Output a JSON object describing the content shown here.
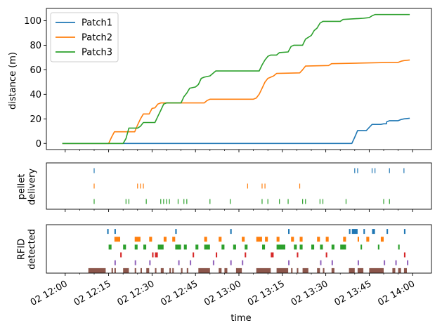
{
  "chart_data": [
    {
      "type": "line",
      "id": "distance",
      "xlabel": "",
      "ylabel": "distance (m)",
      "xlim": [
        "12:00",
        "14:00"
      ],
      "ylim": [
        -5,
        110
      ],
      "yticks": [
        0,
        20,
        40,
        60,
        80,
        100
      ],
      "legend": {
        "placement": "top-left",
        "entries": [
          "Patch1",
          "Patch2",
          "Patch3"
        ]
      },
      "series": [
        {
          "name": "Patch1",
          "color": "#1f77b4",
          "points": [
            [
              "11:59",
              0
            ],
            [
              "13:39",
              0
            ],
            [
              "13:40",
              5
            ],
            [
              "13:41",
              10.5
            ],
            [
              "13:44",
              10.5
            ],
            [
              "13:45",
              13
            ],
            [
              "13:46",
              15.5
            ],
            [
              "13:49",
              15.5
            ],
            [
              "13:50",
              16
            ],
            [
              "13:51",
              16
            ],
            [
              "13:51",
              17.5
            ],
            [
              "13:52",
              18.5
            ],
            [
              "13:55",
              18.5
            ],
            [
              "13:56",
              19.5
            ],
            [
              "13:57",
              20
            ],
            [
              "13:59",
              20.5
            ]
          ]
        },
        {
          "name": "Patch2",
          "color": "#ff7f0e",
          "points": [
            [
              "11:59",
              0
            ],
            [
              "12:15",
              0
            ],
            [
              "12:16",
              5
            ],
            [
              "12:17",
              9.5
            ],
            [
              "12:24",
              9.5
            ],
            [
              "12:25",
              15
            ],
            [
              "12:26",
              20
            ],
            [
              "12:27",
              24
            ],
            [
              "12:29",
              24
            ],
            [
              "12:30",
              28.5
            ],
            [
              "12:31",
              29
            ],
            [
              "12:32",
              32
            ],
            [
              "12:33",
              33
            ],
            [
              "12:48",
              33
            ],
            [
              "12:49",
              35
            ],
            [
              "12:50",
              36
            ],
            [
              "13:05",
              36
            ],
            [
              "13:06",
              37
            ],
            [
              "13:07",
              40
            ],
            [
              "13:08",
              45
            ],
            [
              "13:09",
              50
            ],
            [
              "13:10",
              53
            ],
            [
              "13:12",
              55
            ],
            [
              "13:13",
              57
            ],
            [
              "13:21",
              57.5
            ],
            [
              "13:22",
              60
            ],
            [
              "13:23",
              63
            ],
            [
              "13:31",
              63.5
            ],
            [
              "13:32",
              65
            ],
            [
              "13:42",
              65.5
            ],
            [
              "13:52",
              66
            ],
            [
              "13:55",
              66
            ],
            [
              "13:56",
              67
            ],
            [
              "13:57",
              67.5
            ],
            [
              "13:59",
              68
            ]
          ]
        },
        {
          "name": "Patch3",
          "color": "#2ca02c",
          "points": [
            [
              "11:59",
              0
            ],
            [
              "12:20",
              0
            ],
            [
              "12:21",
              4
            ],
            [
              "12:22",
              12.5
            ],
            [
              "12:25",
              12.5
            ],
            [
              "12:26",
              14
            ],
            [
              "12:27",
              17
            ],
            [
              "12:31",
              17
            ],
            [
              "12:32",
              22
            ],
            [
              "12:33",
              27
            ],
            [
              "12:34",
              32
            ],
            [
              "12:35",
              33
            ],
            [
              "12:40",
              33
            ],
            [
              "12:41",
              38
            ],
            [
              "12:42",
              41
            ],
            [
              "12:43",
              45
            ],
            [
              "12:45",
              46
            ],
            [
              "12:46",
              48
            ],
            [
              "12:47",
              53
            ],
            [
              "12:48",
              54
            ],
            [
              "12:50",
              55
            ],
            [
              "12:51",
              57
            ],
            [
              "12:52",
              59
            ],
            [
              "13:07",
              59
            ],
            [
              "13:08",
              64
            ],
            [
              "13:09",
              68
            ],
            [
              "13:10",
              71
            ],
            [
              "13:11",
              72
            ],
            [
              "13:13",
              72
            ],
            [
              "13:14",
              74
            ],
            [
              "13:17",
              74.5
            ],
            [
              "13:18",
              79
            ],
            [
              "13:19",
              80
            ],
            [
              "13:22",
              80
            ],
            [
              "13:23",
              85
            ],
            [
              "13:25",
              88
            ],
            [
              "13:26",
              92
            ],
            [
              "13:27",
              94
            ],
            [
              "13:28",
              98
            ],
            [
              "13:29",
              99.5
            ],
            [
              "13:35",
              99.5
            ],
            [
              "13:36",
              101
            ],
            [
              "13:43",
              102
            ],
            [
              "13:45",
              102.5
            ],
            [
              "13:46",
              104
            ],
            [
              "13:47",
              105
            ],
            [
              "13:59",
              105
            ]
          ]
        }
      ]
    },
    {
      "type": "scatter",
      "id": "pellet",
      "xlabel": "",
      "ylabel": "pellet delivery",
      "series": [
        {
          "name": "",
          "color": "#1f77b4",
          "times": [
            "12:10",
            "13:40",
            "13:41",
            "13:46",
            "13:47",
            "13:52",
            "13:57"
          ]
        },
        {
          "name": "",
          "color": "#ff7f0e",
          "times": [
            "12:10",
            "12:25",
            "12:26",
            "12:27",
            "13:03",
            "13:08",
            "13:09",
            "13:21"
          ]
        },
        {
          "name": "",
          "color": "#2ca02c",
          "times": [
            "12:10",
            "12:21",
            "12:22",
            "12:28",
            "12:33",
            "12:34",
            "12:35",
            "12:36",
            "12:39",
            "12:41",
            "12:42",
            "12:50",
            "12:57",
            "13:08",
            "13:10",
            "13:14",
            "13:17",
            "13:22",
            "13:23",
            "13:28",
            "13:29",
            "13:37",
            "13:50",
            "13:52"
          ]
        }
      ]
    },
    {
      "type": "scatter",
      "id": "rfid",
      "xlabel": "time",
      "ylabel": "RFID detected",
      "xticks": [
        "02 12:00",
        "02 12:15",
        "02 12:30",
        "02 12:45",
        "02 13:00",
        "02 13:15",
        "02 13:30",
        "02 13:45",
        "02 14:00"
      ],
      "series": [
        {
          "name": "",
          "color": "#1f77b4",
          "intervals": [
            [
              "12:14.5",
              "12:15"
            ],
            [
              "12:17",
              "12:17.5"
            ],
            [
              "12:38",
              "12:38.5"
            ],
            [
              "12:57",
              "12:57.5"
            ],
            [
              "13:17",
              "13:17.5"
            ],
            [
              "13:38",
              "13:38.5"
            ],
            [
              "13:39",
              "13:41"
            ],
            [
              "13:43",
              "13:43.5"
            ],
            [
              "13:46",
              "13:47"
            ],
            [
              "13:51",
              "13:51.5"
            ],
            [
              "13:57",
              "13:57.5"
            ]
          ]
        },
        {
          "name": "",
          "color": "#ff7f0e",
          "intervals": [
            [
              "12:17",
              "12:19"
            ],
            [
              "12:24",
              "12:26"
            ],
            [
              "12:29",
              "12:30"
            ],
            [
              "12:34",
              "12:35"
            ],
            [
              "12:37",
              "12:38"
            ],
            [
              "12:48",
              "12:49"
            ],
            [
              "12:53",
              "12:54"
            ],
            [
              "13:01",
              "13:02"
            ],
            [
              "13:06",
              "13:08"
            ],
            [
              "13:09",
              "13:10"
            ],
            [
              "13:13",
              "13:14"
            ],
            [
              "13:18",
              "13:19"
            ],
            [
              "13:21",
              "13:22"
            ],
            [
              "13:27",
              "13:28"
            ],
            [
              "13:30",
              "13:31"
            ],
            [
              "13:36",
              "13:37"
            ],
            [
              "13:41",
              "13:41.5"
            ],
            [
              "13:44",
              "13:45"
            ],
            [
              "13:49",
              "13:50"
            ]
          ]
        },
        {
          "name": "",
          "color": "#2ca02c",
          "intervals": [
            [
              "12:15",
              "12:16"
            ],
            [
              "12:20",
              "12:21"
            ],
            [
              "12:24",
              "12:25"
            ],
            [
              "12:27",
              "12:28"
            ],
            [
              "12:32",
              "12:34"
            ],
            [
              "12:38",
              "12:40"
            ],
            [
              "12:41",
              "12:42"
            ],
            [
              "12:45",
              "12:46"
            ],
            [
              "12:48",
              "12:50"
            ],
            [
              "12:54",
              "12:55"
            ],
            [
              "12:58",
              "12:59"
            ],
            [
              "13:02",
              "13:03"
            ],
            [
              "13:08",
              "13:09"
            ],
            [
              "13:13",
              "13:16"
            ],
            [
              "13:19",
              "13:20"
            ],
            [
              "13:21",
              "13:22"
            ],
            [
              "13:25",
              "13:26"
            ],
            [
              "13:28",
              "13:29"
            ],
            [
              "13:32",
              "13:33"
            ],
            [
              "13:35",
              "13:37"
            ],
            [
              "13:42",
              "13:42.5"
            ],
            [
              "13:48",
              "13:48.5"
            ],
            [
              "13:55",
              "13:55.5"
            ]
          ]
        },
        {
          "name": "",
          "color": "#d62728",
          "intervals": [
            [
              "12:19",
              "12:19.5"
            ],
            [
              "12:30",
              "12:30.5"
            ],
            [
              "12:31",
              "12:32"
            ],
            [
              "12:44",
              "12:44.5"
            ],
            [
              "12:52",
              "12:52.5"
            ],
            [
              "13:02",
              "13:02.5"
            ],
            [
              "13:11",
              "13:12"
            ],
            [
              "13:20",
              "13:20.5"
            ],
            [
              "13:30",
              "13:30.5"
            ],
            [
              "13:57",
              "13:57.5"
            ]
          ]
        },
        {
          "name": "",
          "color": "#9467bd",
          "intervals": [
            [
              "12:17",
              "12:17.5"
            ],
            [
              "12:24",
              "12:24.5"
            ],
            [
              "12:29",
              "12:29.5"
            ],
            [
              "12:39",
              "12:39.5"
            ],
            [
              "12:43",
              "12:43.5"
            ],
            [
              "12:51",
              "12:51.5"
            ],
            [
              "12:57",
              "12:57.5"
            ],
            [
              "13:01",
              "13:01.5"
            ],
            [
              "13:17",
              "13:17.5"
            ],
            [
              "13:28",
              "13:28.5"
            ],
            [
              "13:32",
              "13:32.5"
            ],
            [
              "13:41",
              "13:41.5"
            ],
            [
              "13:50",
              "13:50.5"
            ],
            [
              "13:54",
              "13:54.5"
            ],
            [
              "13:58",
              "13:58.5"
            ]
          ]
        },
        {
          "name": "",
          "color": "#8c564b",
          "intervals": [
            [
              "12:08",
              "12:14"
            ],
            [
              "12:16",
              "12:16.5"
            ],
            [
              "12:17",
              "12:17.5"
            ],
            [
              "12:20",
              "12:22"
            ],
            [
              "12:24",
              "12:24.5"
            ],
            [
              "12:26",
              "12:26.5"
            ],
            [
              "12:28",
              "12:29"
            ],
            [
              "12:31",
              "12:31.5"
            ],
            [
              "12:33",
              "12:34"
            ],
            [
              "12:36",
              "12:36.5"
            ],
            [
              "12:37",
              "12:37.5"
            ],
            [
              "12:40",
              "12:40.5"
            ],
            [
              "12:42",
              "12:42.5"
            ],
            [
              "12:46",
              "12:50"
            ],
            [
              "12:53",
              "12:54"
            ],
            [
              "12:55",
              "12:56"
            ],
            [
              "12:59",
              "13:01"
            ],
            [
              "13:06",
              "13:11"
            ],
            [
              "13:13",
              "13:17"
            ],
            [
              "13:18",
              "13:18.5"
            ],
            [
              "13:20",
              "13:20.5"
            ],
            [
              "13:22",
              "13:24"
            ],
            [
              "13:27",
              "13:28"
            ],
            [
              "13:29",
              "13:29.5"
            ],
            [
              "13:32",
              "13:33"
            ],
            [
              "13:38",
              "13:40"
            ],
            [
              "13:41",
              "13:43"
            ],
            [
              "13:45",
              "13:50"
            ],
            [
              "13:53",
              "13:54"
            ],
            [
              "13:55",
              "13:56"
            ],
            [
              "13:57",
              "13:58"
            ]
          ]
        }
      ]
    }
  ]
}
